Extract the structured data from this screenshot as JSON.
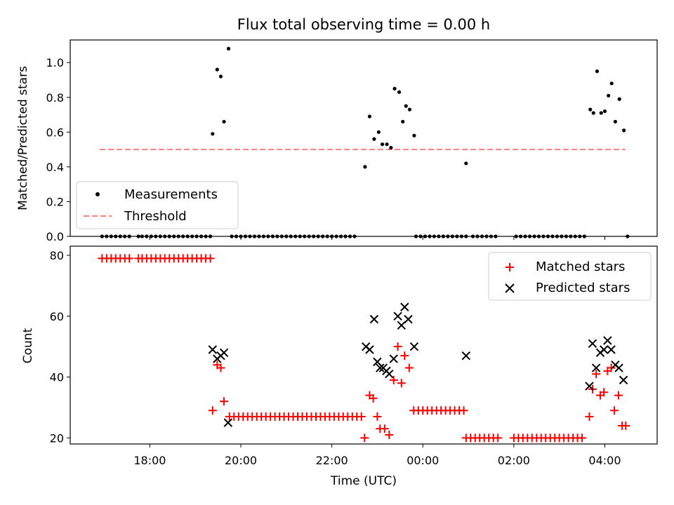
{
  "chart_data": [
    {
      "type": "scatter",
      "title": "Flux total observing time = 0.00 h",
      "xlabel": "",
      "ylabel": "Matched/Predicted stars",
      "xlim": [
        16.25,
        29.15
      ],
      "ylim": [
        0,
        1.13
      ],
      "yticks": [
        "0.0",
        "0.2",
        "0.4",
        "0.6",
        "0.8",
        "1.0"
      ],
      "threshold": {
        "name": "Threshold",
        "value": 0.5,
        "x_range": [
          16.9,
          28.45
        ],
        "color": "#ff7f7f"
      },
      "series": [
        {
          "name": "Measurements",
          "color": "#000000",
          "points": [
            [
              16.95,
              0
            ],
            [
              17.05,
              0
            ],
            [
              17.15,
              0
            ],
            [
              17.25,
              0
            ],
            [
              17.35,
              0
            ],
            [
              17.45,
              0
            ],
            [
              17.55,
              0
            ],
            [
              17.75,
              0
            ],
            [
              17.83,
              0
            ],
            [
              17.93,
              0
            ],
            [
              18.03,
              0
            ],
            [
              18.13,
              0
            ],
            [
              18.23,
              0
            ],
            [
              18.33,
              0
            ],
            [
              18.43,
              0
            ],
            [
              18.53,
              0
            ],
            [
              18.63,
              0
            ],
            [
              18.73,
              0
            ],
            [
              18.83,
              0
            ],
            [
              18.93,
              0
            ],
            [
              19.03,
              0
            ],
            [
              19.13,
              0
            ],
            [
              19.23,
              0
            ],
            [
              19.33,
              0
            ],
            [
              19.38,
              0.59
            ],
            [
              19.48,
              0.96
            ],
            [
              19.56,
              0.92
            ],
            [
              19.63,
              0.66
            ],
            [
              19.73,
              1.08
            ],
            [
              19.8,
              0
            ],
            [
              19.9,
              0
            ],
            [
              20.0,
              0
            ],
            [
              20.1,
              0
            ],
            [
              20.2,
              0
            ],
            [
              20.3,
              0
            ],
            [
              20.4,
              0
            ],
            [
              20.5,
              0
            ],
            [
              20.6,
              0
            ],
            [
              20.7,
              0
            ],
            [
              20.8,
              0
            ],
            [
              20.9,
              0
            ],
            [
              21.0,
              0
            ],
            [
              21.1,
              0
            ],
            [
              21.2,
              0
            ],
            [
              21.3,
              0
            ],
            [
              21.4,
              0
            ],
            [
              21.5,
              0
            ],
            [
              21.6,
              0
            ],
            [
              21.7,
              0
            ],
            [
              21.8,
              0
            ],
            [
              21.9,
              0
            ],
            [
              22.0,
              0
            ],
            [
              22.1,
              0
            ],
            [
              22.2,
              0
            ],
            [
              22.3,
              0
            ],
            [
              22.4,
              0
            ],
            [
              22.5,
              0
            ],
            [
              22.73,
              0.4
            ],
            [
              22.83,
              0.69
            ],
            [
              22.93,
              0.56
            ],
            [
              23.03,
              0.6
            ],
            [
              23.11,
              0.53
            ],
            [
              23.21,
              0.53
            ],
            [
              23.3,
              0.51
            ],
            [
              23.38,
              0.85
            ],
            [
              23.48,
              0.83
            ],
            [
              23.56,
              0.66
            ],
            [
              23.63,
              0.75
            ],
            [
              23.71,
              0.73
            ],
            [
              23.81,
              0.58
            ],
            [
              23.85,
              0
            ],
            [
              23.95,
              0
            ],
            [
              24.05,
              0
            ],
            [
              24.15,
              0
            ],
            [
              24.25,
              0
            ],
            [
              24.35,
              0
            ],
            [
              24.45,
              0
            ],
            [
              24.55,
              0
            ],
            [
              24.65,
              0
            ],
            [
              24.75,
              0
            ],
            [
              24.85,
              0
            ],
            [
              24.95,
              0
            ],
            [
              24.95,
              0.42
            ],
            [
              25.1,
              0
            ],
            [
              25.2,
              0
            ],
            [
              25.3,
              0
            ],
            [
              25.4,
              0
            ],
            [
              25.5,
              0
            ],
            [
              25.6,
              0
            ],
            [
              26.05,
              0
            ],
            [
              26.15,
              0
            ],
            [
              26.25,
              0
            ],
            [
              26.35,
              0
            ],
            [
              26.45,
              0
            ],
            [
              26.55,
              0
            ],
            [
              26.65,
              0
            ],
            [
              26.75,
              0
            ],
            [
              26.85,
              0
            ],
            [
              26.95,
              0
            ],
            [
              27.05,
              0
            ],
            [
              27.15,
              0
            ],
            [
              27.25,
              0
            ],
            [
              27.35,
              0
            ],
            [
              27.45,
              0
            ],
            [
              27.55,
              0
            ],
            [
              27.68,
              0.73
            ],
            [
              27.75,
              0.71
            ],
            [
              27.83,
              0.95
            ],
            [
              27.92,
              0.71
            ],
            [
              28.0,
              0.72
            ],
            [
              28.08,
              0.81
            ],
            [
              28.15,
              0.88
            ],
            [
              28.23,
              0.66
            ],
            [
              28.32,
              0.79
            ],
            [
              28.42,
              0.61
            ],
            [
              28.5,
              0
            ]
          ]
        }
      ],
      "legend": {
        "location": "lower left",
        "entries": [
          "Measurements",
          "Threshold"
        ]
      }
    },
    {
      "type": "scatter",
      "title": "",
      "xlabel": "Time (UTC)",
      "ylabel": "Count",
      "xlim": [
        16.25,
        29.15
      ],
      "ylim": [
        18,
        83
      ],
      "yticks": [
        "20",
        "40",
        "60",
        "80"
      ],
      "xticks": [
        {
          "value": 18,
          "label": "18:00"
        },
        {
          "value": 20,
          "label": "20:00"
        },
        {
          "value": 22,
          "label": "22:00"
        },
        {
          "value": 24,
          "label": "00:00"
        },
        {
          "value": 26,
          "label": "02:00"
        },
        {
          "value": 28,
          "label": "04:00"
        }
      ],
      "series": [
        {
          "name": "Matched stars",
          "marker": "plus",
          "color": "#ff0000",
          "points": [
            [
              16.95,
              79
            ],
            [
              17.05,
              79
            ],
            [
              17.15,
              79
            ],
            [
              17.25,
              79
            ],
            [
              17.35,
              79
            ],
            [
              17.45,
              79
            ],
            [
              17.55,
              79
            ],
            [
              17.75,
              79
            ],
            [
              17.83,
              79
            ],
            [
              17.93,
              79
            ],
            [
              18.03,
              79
            ],
            [
              18.13,
              79
            ],
            [
              18.23,
              79
            ],
            [
              18.33,
              79
            ],
            [
              18.43,
              79
            ],
            [
              18.53,
              79
            ],
            [
              18.63,
              79
            ],
            [
              18.73,
              79
            ],
            [
              18.83,
              79
            ],
            [
              18.93,
              79
            ],
            [
              19.03,
              79
            ],
            [
              19.13,
              79
            ],
            [
              19.23,
              79
            ],
            [
              19.33,
              79
            ],
            [
              19.38,
              29
            ],
            [
              19.48,
              44
            ],
            [
              19.56,
              43
            ],
            [
              19.63,
              32
            ],
            [
              19.75,
              27
            ],
            [
              19.85,
              27
            ],
            [
              19.95,
              27
            ],
            [
              20.05,
              27
            ],
            [
              20.15,
              27
            ],
            [
              20.25,
              27
            ],
            [
              20.35,
              27
            ],
            [
              20.45,
              27
            ],
            [
              20.55,
              27
            ],
            [
              20.65,
              27
            ],
            [
              20.75,
              27
            ],
            [
              20.85,
              27
            ],
            [
              20.95,
              27
            ],
            [
              21.05,
              27
            ],
            [
              21.15,
              27
            ],
            [
              21.25,
              27
            ],
            [
              21.35,
              27
            ],
            [
              21.45,
              27
            ],
            [
              21.55,
              27
            ],
            [
              21.65,
              27
            ],
            [
              21.75,
              27
            ],
            [
              21.85,
              27
            ],
            [
              21.95,
              27
            ],
            [
              22.05,
              27
            ],
            [
              22.15,
              27
            ],
            [
              22.25,
              27
            ],
            [
              22.35,
              27
            ],
            [
              22.45,
              27
            ],
            [
              22.55,
              27
            ],
            [
              22.65,
              27
            ],
            [
              22.72,
              20
            ],
            [
              22.83,
              34
            ],
            [
              22.91,
              33
            ],
            [
              23.0,
              27
            ],
            [
              23.06,
              23
            ],
            [
              23.16,
              23
            ],
            [
              23.26,
              21
            ],
            [
              23.36,
              39
            ],
            [
              23.45,
              50
            ],
            [
              23.53,
              38
            ],
            [
              23.6,
              47
            ],
            [
              23.7,
              43
            ],
            [
              23.8,
              29
            ],
            [
              23.9,
              29
            ],
            [
              24.0,
              29
            ],
            [
              24.1,
              29
            ],
            [
              24.2,
              29
            ],
            [
              24.3,
              29
            ],
            [
              24.4,
              29
            ],
            [
              24.5,
              29
            ],
            [
              24.6,
              29
            ],
            [
              24.7,
              29
            ],
            [
              24.8,
              29
            ],
            [
              24.9,
              29
            ],
            [
              24.95,
              20
            ],
            [
              25.05,
              20
            ],
            [
              25.15,
              20
            ],
            [
              25.25,
              20
            ],
            [
              25.35,
              20
            ],
            [
              25.45,
              20
            ],
            [
              25.55,
              20
            ],
            [
              25.65,
              20
            ],
            [
              26.0,
              20
            ],
            [
              26.1,
              20
            ],
            [
              26.2,
              20
            ],
            [
              26.3,
              20
            ],
            [
              26.4,
              20
            ],
            [
              26.5,
              20
            ],
            [
              26.6,
              20
            ],
            [
              26.7,
              20
            ],
            [
              26.8,
              20
            ],
            [
              26.9,
              20
            ],
            [
              27.0,
              20
            ],
            [
              27.1,
              20
            ],
            [
              27.2,
              20
            ],
            [
              27.3,
              20
            ],
            [
              27.4,
              20
            ],
            [
              27.5,
              20
            ],
            [
              27.66,
              27
            ],
            [
              27.73,
              36
            ],
            [
              27.81,
              41
            ],
            [
              27.9,
              34
            ],
            [
              27.98,
              35
            ],
            [
              28.06,
              42
            ],
            [
              28.14,
              43
            ],
            [
              28.21,
              29
            ],
            [
              28.3,
              34
            ],
            [
              28.38,
              24
            ],
            [
              28.46,
              24
            ]
          ]
        },
        {
          "name": "Predicted stars",
          "marker": "x",
          "color": "#000000",
          "points": [
            [
              19.38,
              49
            ],
            [
              19.48,
              46
            ],
            [
              19.56,
              47
            ],
            [
              19.63,
              48
            ],
            [
              19.72,
              25
            ],
            [
              22.75,
              50
            ],
            [
              22.83,
              49
            ],
            [
              22.93,
              59
            ],
            [
              23.0,
              45
            ],
            [
              23.06,
              43
            ],
            [
              23.13,
              43
            ],
            [
              23.2,
              42
            ],
            [
              23.26,
              41
            ],
            [
              23.36,
              46
            ],
            [
              23.45,
              60
            ],
            [
              23.53,
              57
            ],
            [
              23.6,
              63
            ],
            [
              23.68,
              59
            ],
            [
              23.81,
              50
            ],
            [
              24.95,
              47
            ],
            [
              27.66,
              37
            ],
            [
              27.73,
              51
            ],
            [
              27.81,
              43
            ],
            [
              27.9,
              48
            ],
            [
              27.98,
              49
            ],
            [
              28.06,
              52
            ],
            [
              28.14,
              49
            ],
            [
              28.23,
              44
            ],
            [
              28.31,
              43
            ],
            [
              28.41,
              39
            ]
          ]
        }
      ],
      "legend": {
        "location": "upper right",
        "entries": [
          "Matched stars",
          "Predicted stars"
        ]
      }
    }
  ]
}
